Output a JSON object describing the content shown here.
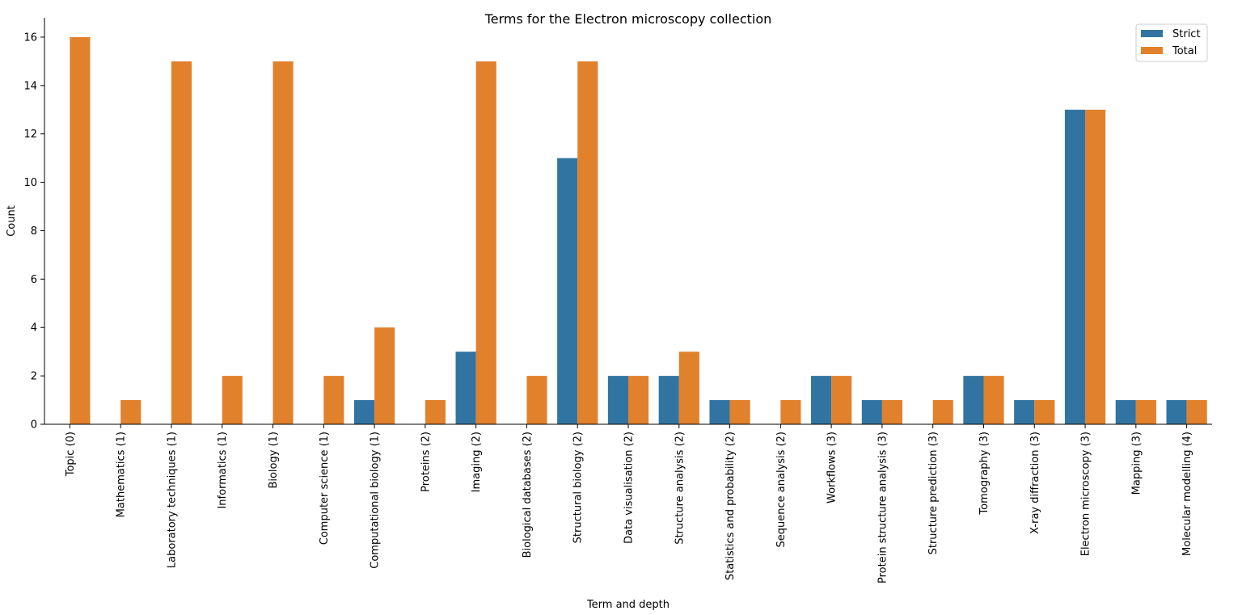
{
  "chart_data": {
    "type": "bar",
    "title": "Terms for the Electron microscopy collection",
    "xlabel": "Term and depth",
    "ylabel": "Count",
    "ylim": [
      0,
      16.8
    ],
    "yticks": [
      0,
      2,
      4,
      6,
      8,
      10,
      12,
      14,
      16
    ],
    "grid": false,
    "legend_position": "top-right",
    "categories": [
      "Topic (0)",
      "Mathematics (1)",
      "Laboratory techniques (1)",
      "Informatics (1)",
      "Biology (1)",
      "Computer science (1)",
      "Computational biology (1)",
      "Proteins (2)",
      "Imaging (2)",
      "Biological databases (2)",
      "Structural biology (2)",
      "Data visualisation (2)",
      "Structure analysis (2)",
      "Statistics and probability (2)",
      "Sequence analysis (2)",
      "Workflows (3)",
      "Protein structure analysis (3)",
      "Structure prediction (3)",
      "Tomography (3)",
      "X-ray diffraction (3)",
      "Electron microscopy (3)",
      "Mapping (3)",
      "Molecular modelling (4)"
    ],
    "series": [
      {
        "name": "Strict",
        "color": "#3274a1",
        "values": [
          0,
          0,
          0,
          0,
          0,
          0,
          1,
          0,
          3,
          0,
          11,
          2,
          2,
          1,
          0,
          2,
          1,
          0,
          2,
          1,
          13,
          1,
          1
        ]
      },
      {
        "name": "Total",
        "color": "#e1812c",
        "values": [
          16,
          1,
          15,
          2,
          15,
          2,
          4,
          1,
          15,
          2,
          15,
          2,
          3,
          1,
          1,
          2,
          1,
          1,
          2,
          1,
          13,
          1,
          1
        ]
      }
    ]
  }
}
